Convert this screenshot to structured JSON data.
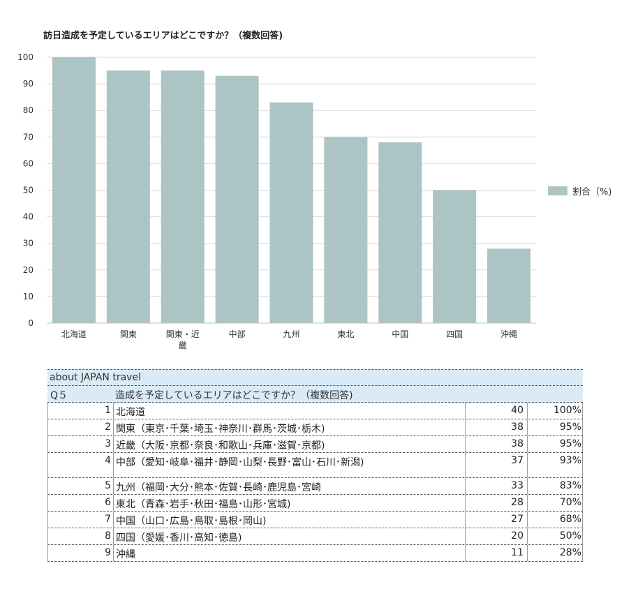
{
  "chart_data": {
    "type": "bar",
    "title": "訪日造成を予定しているエリアはどこですか？（複数回答)",
    "categories": [
      "北海道",
      "関東",
      "関東・近\n畿",
      "中部",
      "九州",
      "東北",
      "中国",
      "四国",
      "沖縄"
    ],
    "series": [
      {
        "name": "割合（%)",
        "values": [
          100,
          95,
          95,
          93,
          83,
          70,
          68,
          50,
          28
        ]
      }
    ],
    "ylim": [
      0,
      100
    ],
    "yticks": [
      0,
      10,
      20,
      30,
      40,
      50,
      60,
      70,
      80,
      90,
      100
    ],
    "xlabel": "",
    "ylabel": "",
    "grid": true,
    "legend_position": "right",
    "bar_color": "#acc4c4",
    "grid_color": "#d9d9d9"
  },
  "table": {
    "source_label": "about JAPAN travel",
    "question_code": "Q５",
    "question_text": "造成を予定しているエリアはどこですか？（複数回答)",
    "header_bg": "#daeaf6",
    "rows": [
      {
        "num": "1",
        "label": "北海道",
        "count": "40",
        "pct": "100%"
      },
      {
        "num": "2",
        "label": "関東（東京･千葉･埼玉･神奈川･群馬･茨城･栃木)",
        "count": "38",
        "pct": "95%"
      },
      {
        "num": "3",
        "label": "近畿（大阪･京都･奈良･和歌山･兵庫･滋賀･京都)",
        "count": "38",
        "pct": "95%"
      },
      {
        "num": "4",
        "label": "中部（愛知･岐阜･福井･静岡･山梨･長野･富山･石川･新潟)",
        "count": "37",
        "pct": "93%"
      },
      {
        "num": "5",
        "label": "九州（福岡･大分･熊本･佐賀･長崎･鹿児島･宮崎",
        "count": "33",
        "pct": "83%"
      },
      {
        "num": "6",
        "label": "東北（青森･岩手･秋田･福島･山形･宮城)",
        "count": "28",
        "pct": "70%"
      },
      {
        "num": "7",
        "label": "中国（山口･広島･鳥取･島根･岡山)",
        "count": "27",
        "pct": "68%"
      },
      {
        "num": "8",
        "label": "四国（愛媛･香川･高知･徳島)",
        "count": "20",
        "pct": "50%"
      },
      {
        "num": "9",
        "label": "沖縄",
        "count": "11",
        "pct": "28%"
      }
    ]
  }
}
